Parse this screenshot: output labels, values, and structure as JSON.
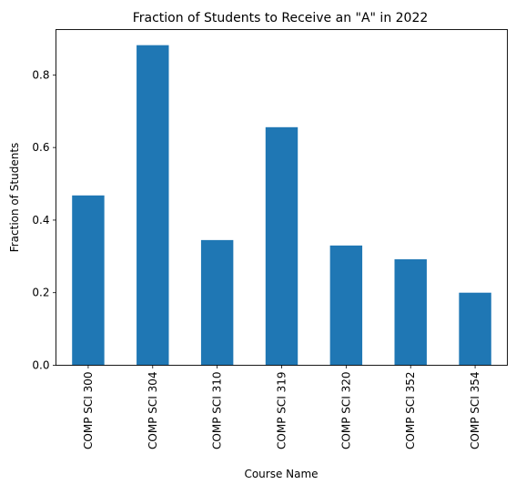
{
  "chart_data": {
    "type": "bar",
    "title": "Fraction of Students to Receive an \"A\" in 2022",
    "xlabel": "Course Name",
    "ylabel": "Fraction of Students",
    "categories": [
      "COMP SCI 300",
      "COMP SCI 304",
      "COMP SCI 310",
      "COMP SCI 319",
      "COMP SCI 320",
      "COMP SCI 352",
      "COMP SCI 354"
    ],
    "values": [
      0.468,
      0.882,
      0.345,
      0.656,
      0.33,
      0.292,
      0.2
    ],
    "ylim": [
      0,
      0.925
    ],
    "yticks": [
      0.0,
      0.2,
      0.4,
      0.6,
      0.8
    ],
    "ytick_labels": [
      "0.0",
      "0.2",
      "0.4",
      "0.6",
      "0.8"
    ],
    "bar_color": "#1f77b4",
    "grid": false,
    "legend": "none"
  }
}
